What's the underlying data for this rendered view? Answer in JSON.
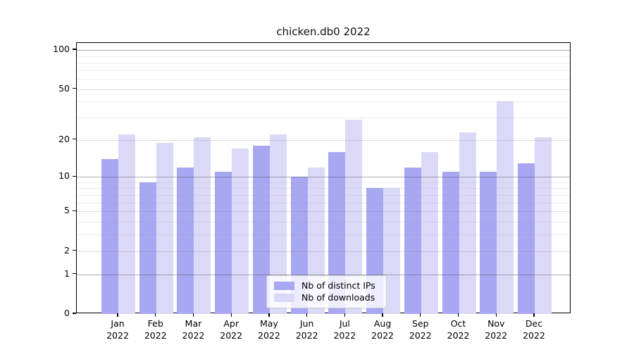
{
  "chart_data": {
    "type": "bar",
    "title": "chicken.db0 2022",
    "categories": [
      "Jan",
      "Feb",
      "Mar",
      "Apr",
      "May",
      "Jun",
      "Jul",
      "Aug",
      "Sep",
      "Oct",
      "Nov",
      "Dec"
    ],
    "x_tick_year": "2022",
    "series": [
      {
        "name": "Nb of distinct IPs",
        "color": "#a8a7f2",
        "values": [
          14,
          9,
          12,
          11,
          18,
          10,
          16,
          8,
          12,
          11,
          11,
          13
        ]
      },
      {
        "name": "Nb of downloads",
        "color": "#dadaf8",
        "values": [
          22,
          19,
          21,
          17,
          22,
          12,
          29,
          8,
          16,
          23,
          40,
          21
        ]
      }
    ],
    "y_scale": "log1p",
    "ylim": [
      0,
      113.3
    ],
    "y_ticks": [
      0,
      1,
      2,
      5,
      10,
      20,
      50,
      100
    ],
    "y_power_ticks": [
      1,
      10,
      100
    ],
    "y_minor_gridlines": [
      3,
      4,
      6,
      7,
      8,
      9,
      30,
      40,
      60,
      70,
      80,
      90
    ],
    "grid": true,
    "legend_position": "lower-center",
    "colors": {
      "grid_power": "rgba(70,70,70,0.42)",
      "grid_labeled": "rgba(120,120,120,0.25)",
      "grid_minor": "rgba(140,140,140,0.16)",
      "axis": "#000000",
      "background": "#ffffff"
    }
  }
}
